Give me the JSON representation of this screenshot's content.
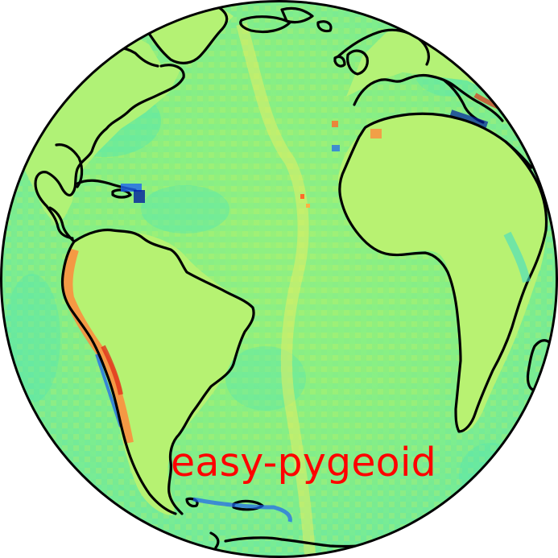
{
  "logo": {
    "text": "easy-pygeoid",
    "color": "#ff0000"
  },
  "colors": {
    "background": "#ffffff",
    "ocean_base": "#8ef07c",
    "ocean_cyan": "#50e6b4",
    "land_base": "#aef27a",
    "land_yellow": "#e6ee60",
    "anomaly_high": "#ff8a3c",
    "anomaly_extreme": "#e0321c",
    "anomaly_low": "#1e64f0",
    "anomaly_deep": "#001ea0",
    "coastline": "#000000",
    "globe_outline": "#000000"
  }
}
